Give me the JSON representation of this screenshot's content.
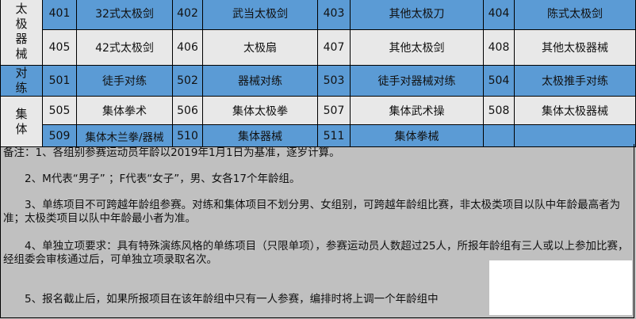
{
  "table": {
    "categories": [
      "太极器械",
      "对练",
      "集体"
    ],
    "rows": [
      {
        "cells": [
          [
            "401",
            "32式太极剑"
          ],
          [
            "402",
            "武当太极剑"
          ],
          [
            "403",
            "其他太极刀"
          ],
          [
            "404",
            "陈式太极剑"
          ]
        ]
      },
      {
        "cells": [
          [
            "405",
            "42式太极剑"
          ],
          [
            "406",
            "太极扇"
          ],
          [
            "407",
            "其他太极剑"
          ],
          [
            "408",
            "其他太极器械"
          ]
        ]
      },
      {
        "cells": [
          [
            "501",
            "徒手对练"
          ],
          [
            "502",
            "器械对练"
          ],
          [
            "503",
            "徒手对器械对练"
          ],
          [
            "504",
            "太极推手对练"
          ]
        ]
      },
      {
        "cells": [
          [
            "505",
            "集体拳术"
          ],
          [
            "506",
            "集体太极拳"
          ],
          [
            "507",
            "集体武术操"
          ],
          [
            "508",
            "集体太极器械"
          ]
        ]
      },
      {
        "cells": [
          [
            "509",
            "集体木兰拳/器械"
          ],
          [
            "510",
            "集体器械"
          ],
          [
            "511",
            "集体拳械"
          ],
          [
            "",
            ""
          ]
        ]
      }
    ]
  },
  "notes": [
    "备注：1、各组别参赛运动员年龄以2019年1月1日为基准，逐岁计算。",
    "2、M代表“男子” ；F代表“女子”，男、女各17个年龄组。",
    "3、单练项目不可跨越年龄组参赛。对练和集体项目不划分男、女组别，可跨越年龄组比赛，非太极类项目以队中年龄最高者为准；太极类项目以队中年龄最小者为准。",
    "4、单独立项要求：具有特殊演练风格的单练项目（只限单项），参赛运动员人数超过25人，所报年龄组有三人或以上参加比赛，经组委会审核通过后，可单独立项录取名次。",
    "5、报名截止后，如果所报项目在该年龄组中只有一人参赛，编排时将上调一个年龄组中"
  ],
  "colors": {
    "blue": "#5b9bd5",
    "light": "#e8e8e8",
    "notes_bg": "#c0c0c0"
  }
}
